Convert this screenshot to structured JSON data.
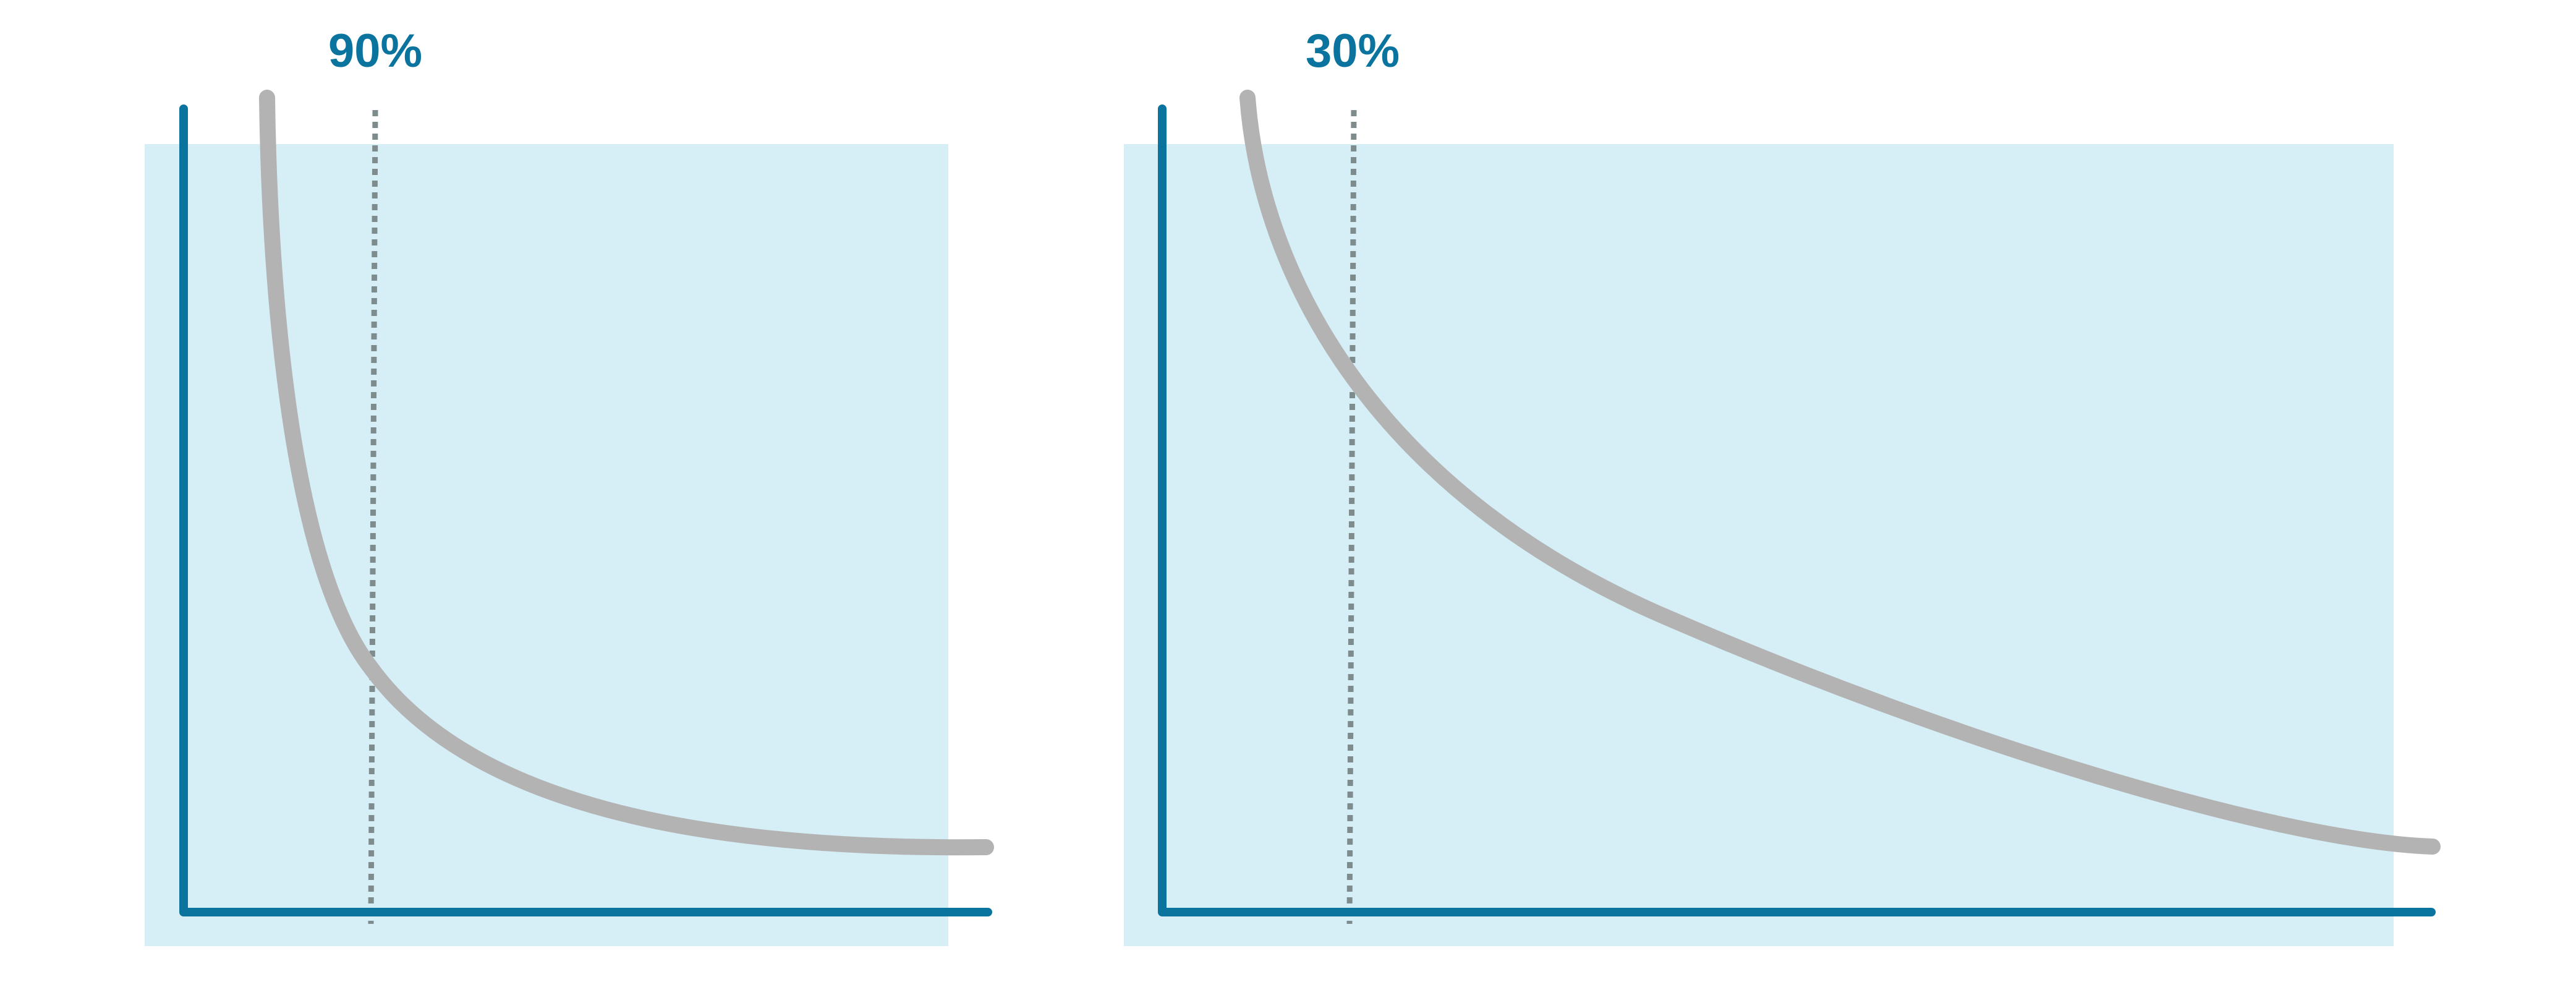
{
  "colors": {
    "axis": "#0a739e",
    "shadow": "#d6eef6",
    "curve": "#b3b3b3",
    "marker_line": "#7f8c8d",
    "label": "#0a739e"
  },
  "chart_data": [
    {
      "type": "line",
      "title": "",
      "xlabel": "",
      "ylabel": "",
      "marker": {
        "label": "90%"
      },
      "series": [
        {
          "values_description_free": true,
          "points": [
            [
              0.05,
              1.0
            ],
            [
              0.2,
              0.5
            ],
            [
              0.4,
              0.2
            ],
            [
              0.6,
              0.11
            ],
            [
              0.8,
              0.09
            ],
            [
              1.0,
              0.08
            ]
          ]
        }
      ]
    },
    {
      "type": "line",
      "title": "",
      "xlabel": "",
      "ylabel": "",
      "marker": {
        "label": "30%"
      },
      "series": [
        {
          "points": [
            [
              0.05,
              1.0
            ],
            [
              0.2,
              0.68
            ],
            [
              0.4,
              0.42
            ],
            [
              0.6,
              0.25
            ],
            [
              0.8,
              0.14
            ],
            [
              1.0,
              0.08
            ]
          ]
        }
      ]
    }
  ]
}
